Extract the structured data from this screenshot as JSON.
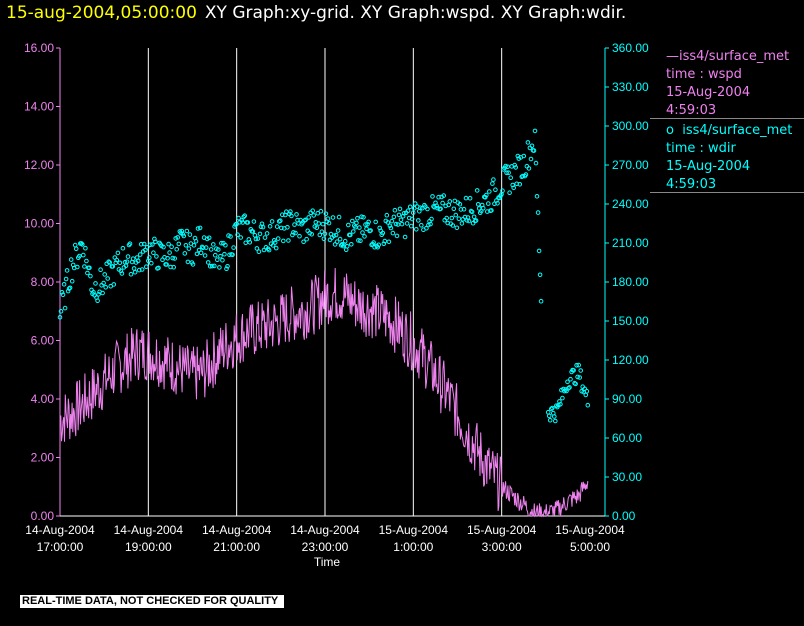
{
  "header": {
    "timestamp": "15-aug-2004,05:00:00",
    "graph_titles": "XY Graph:xy-grid.  XY Graph:wspd.  XY Graph:wdir."
  },
  "legend": {
    "wspd": {
      "line1": "iss4/surface_met",
      "line2": "time : wspd",
      "line3": "15-Aug-2004",
      "line4": "4:59:03"
    },
    "wdir": {
      "line1": "iss4/surface_met",
      "line2": "time : wdir",
      "line3": "15-Aug-2004",
      "line4": "4:59:03"
    }
  },
  "footer": {
    "quality_note": "REAL-TIME DATA, NOT CHECKED FOR QUALITY"
  },
  "colors": {
    "wspd": "#ee82ee",
    "wdir": "#00ffff",
    "grid": "#ffffff",
    "timestamp": "#ffff00"
  },
  "chart_data": {
    "type": "line",
    "xlabel": "Time",
    "xlim": [
      17.0,
      29.0
    ],
    "x_ticks": [
      {
        "value": 17,
        "line1": "14-Aug-2004",
        "line2": "17:00:00"
      },
      {
        "value": 19,
        "line1": "14-Aug-2004",
        "line2": "19:00:00"
      },
      {
        "value": 21,
        "line1": "14-Aug-2004",
        "line2": "21:00:00"
      },
      {
        "value": 23,
        "line1": "14-Aug-2004",
        "line2": "23:00:00"
      },
      {
        "value": 25,
        "line1": "15-Aug-2004",
        "line2": "1:00:00"
      },
      {
        "value": 27,
        "line1": "15-Aug-2004",
        "line2": "3:00:00"
      },
      {
        "value": 29,
        "line1": "15-Aug-2004",
        "line2": "5:00:00"
      }
    ],
    "grid": "vertical",
    "y_left": {
      "series": "wspd",
      "ylim": [
        0,
        16
      ],
      "tick_labels": [
        "0.00",
        "2.00",
        "4.00",
        "6.00",
        "8.00",
        "10.00",
        "12.00",
        "14.00",
        "16.00"
      ]
    },
    "y_right": {
      "series": "wdir",
      "ylim": [
        0,
        360
      ],
      "tick_labels": [
        "0.00",
        "30.00",
        "60.00",
        "90.00",
        "120.00",
        "150.00",
        "180.00",
        "210.00",
        "240.00",
        "270.00",
        "300.00",
        "330.00",
        "360.00"
      ]
    },
    "series": [
      {
        "name": "iss4/surface_met time : wspd",
        "axis": "left",
        "style": "line",
        "x": [
          17.0,
          17.25,
          17.5,
          17.75,
          18.0,
          18.25,
          18.5,
          18.75,
          19.0,
          19.25,
          19.5,
          19.75,
          20.0,
          20.25,
          20.5,
          20.75,
          21.0,
          21.25,
          21.5,
          21.75,
          22.0,
          22.25,
          22.5,
          22.75,
          23.0,
          23.25,
          23.5,
          23.75,
          24.0,
          24.25,
          24.5,
          24.75,
          25.0,
          25.25,
          25.5,
          25.75,
          26.0,
          26.25,
          26.5,
          26.75,
          27.0,
          27.25,
          27.5,
          27.75,
          28.0,
          28.25,
          28.5,
          28.75,
          28.95
        ],
        "y": [
          3.3,
          3.5,
          3.8,
          4.2,
          4.6,
          5.0,
          5.3,
          5.6,
          5.6,
          5.4,
          5.2,
          5.0,
          4.8,
          4.9,
          5.4,
          5.8,
          6.1,
          6.3,
          6.4,
          6.5,
          6.7,
          6.9,
          7.0,
          7.2,
          7.5,
          7.6,
          7.5,
          7.2,
          7.1,
          6.9,
          6.7,
          6.3,
          5.9,
          5.4,
          4.8,
          4.2,
          3.5,
          2.8,
          2.1,
          1.5,
          1.0,
          0.7,
          0.4,
          0.1,
          0.1,
          0.2,
          0.5,
          0.7,
          1.2
        ],
        "noise_amplitude": 1.0
      },
      {
        "name": "iss4/surface_met time : wdir",
        "axis": "right",
        "style": "markers",
        "x": [
          17.0,
          17.25,
          17.5,
          17.75,
          18.0,
          18.25,
          18.5,
          18.75,
          19.0,
          19.25,
          19.5,
          19.75,
          20.0,
          20.25,
          20.5,
          20.75,
          21.0,
          21.25,
          21.5,
          21.75,
          22.0,
          22.25,
          22.5,
          22.75,
          23.0,
          23.25,
          23.5,
          23.75,
          24.0,
          24.25,
          24.5,
          24.75,
          25.0,
          25.25,
          25.5,
          25.75,
          26.0,
          26.25,
          26.5,
          26.75,
          27.0,
          27.25,
          27.5,
          27.75,
          28.0,
          28.25,
          28.5,
          28.75,
          28.95
        ],
        "y": [
          155,
          190,
          210,
          175,
          180,
          190,
          200,
          195,
          205,
          200,
          200,
          210,
          205,
          215,
          195,
          200,
          220,
          220,
          215,
          215,
          220,
          225,
          220,
          225,
          225,
          220,
          215,
          218,
          220,
          215,
          225,
          225,
          230,
          232,
          235,
          235,
          233,
          235,
          240,
          245,
          255,
          262,
          270,
          290,
          80,
          80,
          105,
          110,
          88
        ],
        "noise_amplitude": 12
      }
    ]
  }
}
